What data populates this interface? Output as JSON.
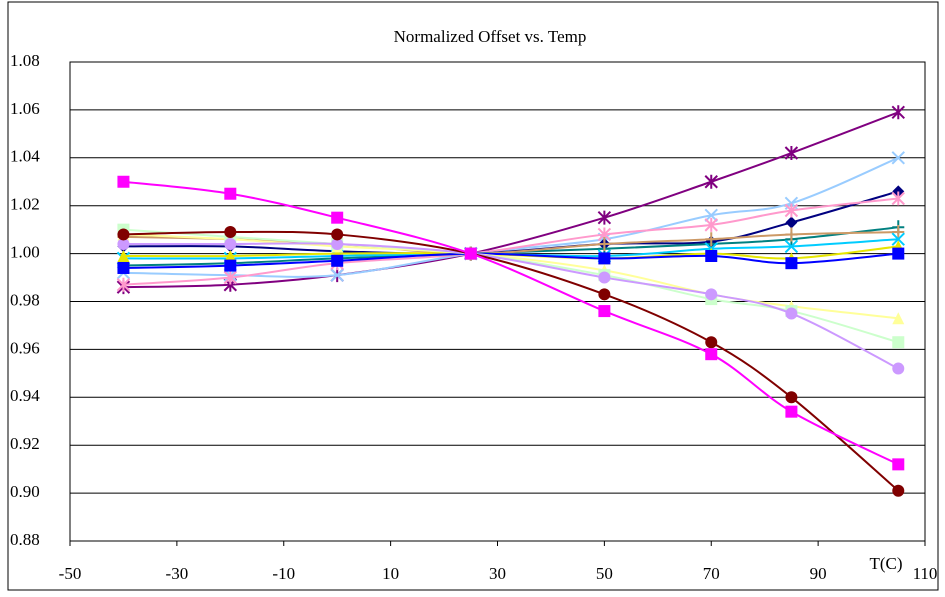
{
  "chart_data": {
    "type": "line",
    "title": "Normalized Offset vs. Temp",
    "x_label": "T(C)",
    "x": [
      -40,
      -20,
      0,
      25,
      50,
      70,
      85,
      105
    ],
    "xlim": [
      -50,
      110
    ],
    "xticks": [
      -50,
      -30,
      -10,
      10,
      30,
      50,
      70,
      90,
      110
    ],
    "ylim": [
      0.88,
      1.08
    ],
    "yticks": [
      0.88,
      {
        "value": 0.9,
        "label": "0.90"
      },
      0.92,
      0.94,
      0.96,
      0.98,
      {
        "value": 1,
        "label": "1.00"
      },
      1.02,
      1.04,
      1.06,
      1.08
    ],
    "grid": true,
    "smooth": true,
    "series": [
      {
        "color": "#800080",
        "marker": "star",
        "values": [
          0.986,
          0.987,
          0.991,
          1.0,
          1.015,
          1.03,
          1.042,
          1.059
        ]
      },
      {
        "color": "#99ccff",
        "marker": "x",
        "values": [
          0.992,
          0.991,
          0.991,
          1.0,
          1.006,
          1.016,
          1.021,
          1.04
        ]
      },
      {
        "color": "#000080",
        "marker": "diamond",
        "values": [
          1.003,
          1.003,
          1.001,
          1.0,
          1.004,
          1.005,
          1.013,
          1.026
        ]
      },
      {
        "color": "#ff99cc",
        "marker": "star",
        "values": [
          0.987,
          0.99,
          0.996,
          1.0,
          1.008,
          1.012,
          1.018,
          1.023
        ]
      },
      {
        "color": "#008080",
        "marker": "plus",
        "values": [
          0.995,
          0.996,
          0.998,
          1.0,
          1.002,
          1.004,
          1.006,
          1.011
        ]
      },
      {
        "color": "#cc9966",
        "marker": "plus",
        "values": [
          1.007,
          1.006,
          1.004,
          1.0,
          1.004,
          1.006,
          1.008,
          1.009
        ]
      },
      {
        "color": "#00ccff",
        "marker": "x",
        "values": [
          0.998,
          0.998,
          0.999,
          1.0,
          0.999,
          1.002,
          1.003,
          1.006
        ]
      },
      {
        "color": "#e6e600",
        "marker": "triangle",
        "values": [
          0.999,
          0.999,
          1.0,
          1.0,
          0.998,
          1.0,
          0.998,
          1.003
        ]
      },
      {
        "color": "#0000ff",
        "marker": "square",
        "values": [
          0.994,
          0.995,
          0.997,
          1.0,
          0.998,
          0.999,
          0.996,
          1.0
        ]
      },
      {
        "color": "#ffff99",
        "marker": "triangle",
        "values": [
          1.008,
          1.006,
          1.003,
          1.0,
          0.993,
          0.983,
          0.978,
          0.973
        ]
      },
      {
        "color": "#ccffcc",
        "marker": "square",
        "values": [
          1.01,
          1.007,
          1.004,
          1.0,
          0.991,
          0.981,
          0.976,
          0.963
        ]
      },
      {
        "color": "#cc99ff",
        "marker": "circle",
        "values": [
          1.004,
          1.004,
          1.004,
          1.0,
          0.99,
          0.983,
          0.975,
          0.952
        ]
      },
      {
        "color": "#800000",
        "marker": "circle",
        "values": [
          1.008,
          1.009,
          1.008,
          1.0,
          0.983,
          0.963,
          0.94,
          0.901
        ]
      },
      {
        "color": "#ff00ff",
        "marker": "square",
        "values": [
          1.03,
          1.025,
          1.015,
          1.0,
          0.976,
          0.958,
          0.934,
          0.912
        ]
      }
    ]
  }
}
